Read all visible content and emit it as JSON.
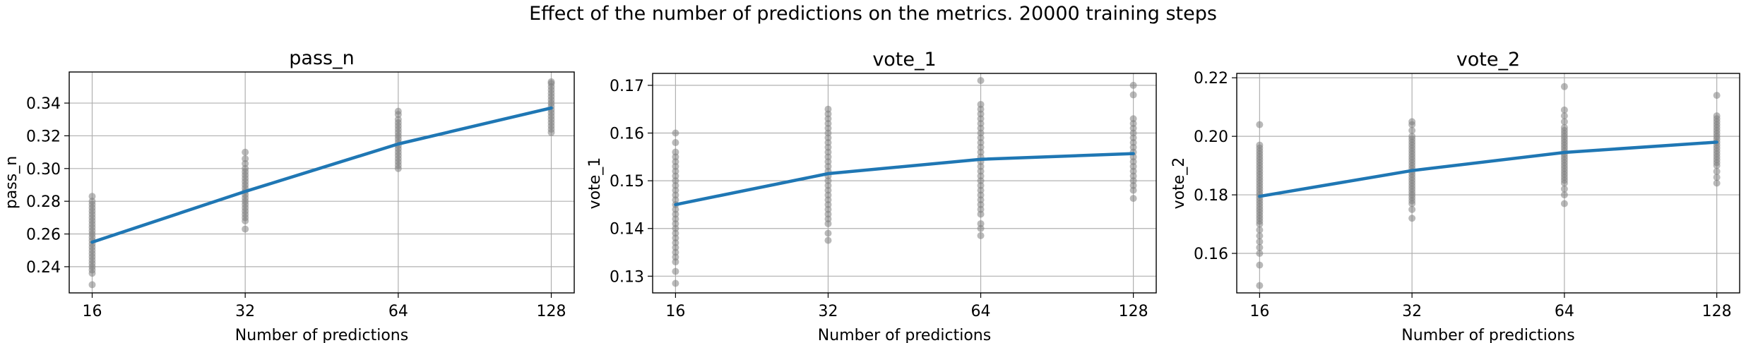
{
  "suptitle": "Effect of the number of predictions on the metrics. 20000 training steps",
  "colors": {
    "line": "#1f77b4",
    "points": "#808080",
    "grid": "#b0b0b0"
  },
  "chart_data": [
    {
      "type": "line",
      "title": "pass_n",
      "xlabel": "Number of predictions",
      "ylabel": "pass_n",
      "x_scale": "log2",
      "x": [
        16,
        32,
        64,
        128
      ],
      "x_ticks": [
        "16",
        "32",
        "64",
        "128"
      ],
      "ylim": [
        0.224,
        0.359
      ],
      "y_ticks": [
        "0.24",
        "0.26",
        "0.28",
        "0.30",
        "0.32",
        "0.34"
      ],
      "grid": true,
      "series": [
        {
          "values": [
            0.255,
            0.286,
            0.315,
            0.337
          ]
        }
      ],
      "scatter": [
        [
          0.229,
          0.236,
          0.238,
          0.24,
          0.242,
          0.244,
          0.246,
          0.248,
          0.25,
          0.252,
          0.254,
          0.256,
          0.258,
          0.26,
          0.262,
          0.264,
          0.266,
          0.268,
          0.27,
          0.272,
          0.274,
          0.276,
          0.278,
          0.28,
          0.283
        ],
        [
          0.263,
          0.268,
          0.27,
          0.272,
          0.274,
          0.276,
          0.278,
          0.28,
          0.282,
          0.284,
          0.286,
          0.288,
          0.29,
          0.292,
          0.294,
          0.296,
          0.298,
          0.3,
          0.303,
          0.306,
          0.31
        ],
        [
          0.3,
          0.302,
          0.304,
          0.306,
          0.308,
          0.31,
          0.312,
          0.314,
          0.316,
          0.318,
          0.32,
          0.322,
          0.324,
          0.326,
          0.328,
          0.33,
          0.333,
          0.335
        ],
        [
          0.322,
          0.324,
          0.326,
          0.328,
          0.33,
          0.332,
          0.334,
          0.336,
          0.338,
          0.34,
          0.342,
          0.344,
          0.346,
          0.348,
          0.35,
          0.352,
          0.353
        ]
      ]
    },
    {
      "type": "line",
      "title": "vote_1",
      "xlabel": "Number of predictions",
      "ylabel": "vote_1",
      "x_scale": "log2",
      "x": [
        16,
        32,
        64,
        128
      ],
      "x_ticks": [
        "16",
        "32",
        "64",
        "128"
      ],
      "ylim": [
        0.1265,
        0.1725
      ],
      "y_ticks": [
        "0.13",
        "0.14",
        "0.15",
        "0.16",
        "0.17"
      ],
      "grid": true,
      "series": [
        {
          "values": [
            0.145,
            0.1515,
            0.1545,
            0.1557
          ]
        }
      ],
      "scatter": [
        [
          0.1285,
          0.131,
          0.133,
          0.134,
          0.135,
          0.136,
          0.137,
          0.138,
          0.139,
          0.14,
          0.141,
          0.142,
          0.143,
          0.144,
          0.145,
          0.146,
          0.147,
          0.148,
          0.149,
          0.15,
          0.151,
          0.152,
          0.153,
          0.154,
          0.155,
          0.156,
          0.158,
          0.16
        ],
        [
          0.1375,
          0.139,
          0.141,
          0.142,
          0.143,
          0.144,
          0.145,
          0.146,
          0.147,
          0.148,
          0.149,
          0.15,
          0.151,
          0.152,
          0.153,
          0.154,
          0.155,
          0.156,
          0.157,
          0.158,
          0.159,
          0.16,
          0.161,
          0.162,
          0.163,
          0.164,
          0.165
        ],
        [
          0.1385,
          0.14,
          0.141,
          0.143,
          0.144,
          0.145,
          0.146,
          0.147,
          0.148,
          0.149,
          0.15,
          0.151,
          0.152,
          0.153,
          0.154,
          0.155,
          0.156,
          0.157,
          0.158,
          0.159,
          0.16,
          0.161,
          0.162,
          0.163,
          0.164,
          0.165,
          0.166,
          0.171
        ],
        [
          0.1463,
          0.148,
          0.149,
          0.15,
          0.151,
          0.152,
          0.153,
          0.154,
          0.155,
          0.156,
          0.157,
          0.158,
          0.159,
          0.16,
          0.161,
          0.162,
          0.163,
          0.168,
          0.17
        ]
      ]
    },
    {
      "type": "line",
      "title": "vote_2",
      "xlabel": "Number of predictions",
      "ylabel": "vote_2",
      "x_scale": "log2",
      "x": [
        16,
        32,
        64,
        128
      ],
      "x_ticks": [
        "16",
        "32",
        "64",
        "128"
      ],
      "ylim": [
        0.1465,
        0.2215
      ],
      "y_ticks": [
        "0.16",
        "0.18",
        "0.20",
        "0.22"
      ],
      "grid": true,
      "series": [
        {
          "values": [
            0.1795,
            0.1883,
            0.1945,
            0.198
          ]
        }
      ],
      "scatter": [
        [
          0.149,
          0.156,
          0.16,
          0.162,
          0.164,
          0.166,
          0.168,
          0.17,
          0.171,
          0.172,
          0.173,
          0.174,
          0.175,
          0.176,
          0.177,
          0.178,
          0.179,
          0.18,
          0.181,
          0.182,
          0.183,
          0.184,
          0.185,
          0.186,
          0.187,
          0.188,
          0.189,
          0.19,
          0.191,
          0.192,
          0.193,
          0.194,
          0.195,
          0.196,
          0.197,
          0.204
        ],
        [
          0.172,
          0.175,
          0.177,
          0.178,
          0.179,
          0.18,
          0.181,
          0.182,
          0.183,
          0.184,
          0.185,
          0.186,
          0.187,
          0.188,
          0.189,
          0.19,
          0.191,
          0.192,
          0.193,
          0.194,
          0.195,
          0.196,
          0.197,
          0.198,
          0.199,
          0.2,
          0.202,
          0.204,
          0.205
        ],
        [
          0.177,
          0.18,
          0.182,
          0.184,
          0.185,
          0.186,
          0.187,
          0.188,
          0.189,
          0.19,
          0.191,
          0.192,
          0.193,
          0.194,
          0.195,
          0.196,
          0.197,
          0.198,
          0.199,
          0.2,
          0.201,
          0.202,
          0.203,
          0.205,
          0.207,
          0.209,
          0.217
        ],
        [
          0.184,
          0.186,
          0.188,
          0.19,
          0.191,
          0.192,
          0.193,
          0.194,
          0.195,
          0.196,
          0.197,
          0.198,
          0.199,
          0.2,
          0.201,
          0.202,
          0.203,
          0.204,
          0.205,
          0.206,
          0.207,
          0.214
        ]
      ]
    }
  ]
}
